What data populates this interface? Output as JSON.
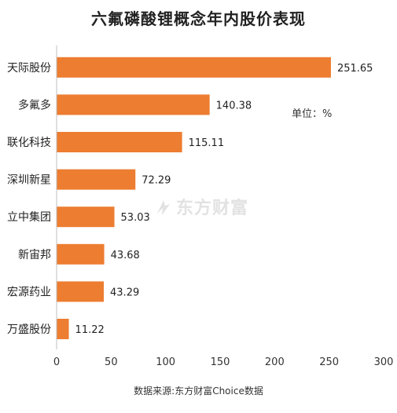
{
  "chart_data": {
    "type": "bar",
    "orientation": "horizontal",
    "title": "六氟磷酸锂概念年内股价表现",
    "unit_note": "单位：%",
    "source": "数据来源:东方财富Choice数据",
    "watermark": "东方财富",
    "categories": [
      "天际股份",
      "多氟多",
      "联化科技",
      "深圳新星",
      "立中集团",
      "新宙邦",
      "宏源药业",
      "万盛股份"
    ],
    "values": [
      251.65,
      140.38,
      115.11,
      72.29,
      53.03,
      43.68,
      43.29,
      11.22
    ],
    "value_labels": [
      "251.65",
      "140.38",
      "115.11",
      "72.29",
      "53.03",
      "43.68",
      "43.29",
      "11.22"
    ],
    "xlim": [
      0,
      300
    ],
    "xticks": [
      "0",
      "50",
      "100",
      "150",
      "200",
      "250",
      "300"
    ],
    "grid": false,
    "colors": {
      "bar": "#ED7D31"
    }
  }
}
